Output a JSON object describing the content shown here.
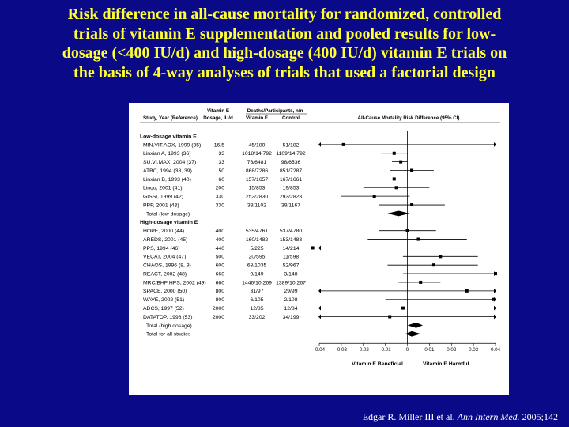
{
  "slide": {
    "title_lines": [
      "Risk difference in all-cause mortality for randomized, controlled",
      "trials of vitamin E supplementation and pooled results for low-",
      "dosage (<400 IU/d) and high-dosage (400 IU/d) vitamin E trials on",
      "the basis of 4-way analyses of trials that used a factorial design"
    ],
    "citation": {
      "authors": "Edgar R. Miller III et al.",
      "journal": "Ann Intern Med.",
      "year_vol": "2005;142"
    }
  },
  "chart_data": {
    "type": "forest",
    "title": "All-Cause Mortality Risk Difference (95% CI)",
    "headers": {
      "study": "Study, Year (Reference)",
      "dosage_line1": "Vitamin E",
      "dosage_line2": "Dosage, IU/d",
      "deaths_header": "Deaths/Participants, n/n",
      "vitamin_e": "Vitamin E",
      "control": "Control"
    },
    "xlim": [
      -0.04,
      0.04
    ],
    "xticks": [
      "-0.04",
      "-0.03",
      "-0.02",
      "-0.01",
      "0",
      "0.01",
      "0.02",
      "0.03",
      "0.04"
    ],
    "xtick_values": [
      -0.04,
      -0.03,
      -0.02,
      -0.01,
      0,
      0.01,
      0.02,
      0.03,
      0.04
    ],
    "reference_line": 0,
    "pooled_line": 0.004,
    "footer_left": "Vitamin E Beneficial",
    "footer_right": "Vitamin E Harmful",
    "groups": [
      {
        "label": "Low-dosage vitamin E",
        "studies": [
          {
            "name": "MIN.VIT.AOX, 1999 (35)",
            "dosage": "16.5",
            "vitamin_e": "45/180",
            "control": "51/182",
            "rd": -0.029,
            "lo": -0.11,
            "hi": 0.11
          },
          {
            "name": "Linxian A, 1993 (36)",
            "dosage": "33",
            "vitamin_e": "1018/14 792",
            "control": "1109/14 792",
            "rd": -0.006,
            "lo": -0.012,
            "hi": 0.0
          },
          {
            "name": "SU.VI.MAX, 2004 (37)",
            "dosage": "33",
            "vitamin_e": "76/6481",
            "control": "98/6536",
            "rd": -0.003,
            "lo": -0.007,
            "hi": 0.0
          },
          {
            "name": "ATBC, 1994 (38, 39)",
            "dosage": "50",
            "vitamin_e": "868/7286",
            "control": "851/7287",
            "rd": 0.002,
            "lo": -0.008,
            "hi": 0.012
          },
          {
            "name": "Linxian B, 1993 (40)",
            "dosage": "60",
            "vitamin_e": "157/1657",
            "control": "167/1661",
            "rd": -0.006,
            "lo": -0.026,
            "hi": 0.014
          },
          {
            "name": "Linqu, 2001 (41)",
            "dosage": "200",
            "vitamin_e": "15/853",
            "control": "19/853",
            "rd": -0.005,
            "lo": -0.02,
            "hi": 0.01
          },
          {
            "name": "GISSI, 1999 (42)",
            "dosage": "330",
            "vitamin_e": "252/2830",
            "control": "293/2828",
            "rd": -0.015,
            "lo": -0.03,
            "hi": 0.001
          },
          {
            "name": "PPP, 2001 (43)",
            "dosage": "330",
            "vitamin_e": "39/1102",
            "control": "39/1167",
            "rd": 0.002,
            "lo": -0.013,
            "hi": 0.017
          }
        ],
        "total": {
          "label": "Total (low dosage)",
          "rd": -0.004,
          "lo": -0.009,
          "hi": 0.001
        }
      },
      {
        "label": "High-dosage vitamin E",
        "studies": [
          {
            "name": "HOPE, 2000 (44)",
            "dosage": "400",
            "vitamin_e": "535/4761",
            "control": "537/4780",
            "rd": 0.0,
            "lo": -0.013,
            "hi": 0.013
          },
          {
            "name": "AREDS, 2001 (45)",
            "dosage": "400",
            "vitamin_e": "160/1482",
            "control": "153/1483",
            "rd": 0.005,
            "lo": -0.018,
            "hi": 0.027
          },
          {
            "name": "PPS, 1994 (46)",
            "dosage": "440",
            "vitamin_e": "5/225",
            "control": "14/214",
            "rd": -0.043,
            "lo": -0.076,
            "hi": -0.01
          },
          {
            "name": "VECAT, 2004 (47)",
            "dosage": "500",
            "vitamin_e": "20/595",
            "control": "11/598",
            "rd": 0.015,
            "lo": -0.002,
            "hi": 0.032
          },
          {
            "name": "CHAOS, 1996 (8, 9)",
            "dosage": "600",
            "vitamin_e": "68/1035",
            "control": "52/967",
            "rd": 0.012,
            "lo": -0.009,
            "hi": 0.032
          },
          {
            "name": "REACT, 2002 (48)",
            "dosage": "660",
            "vitamin_e": "9/149",
            "control": "3/148",
            "rd": 0.04,
            "lo": -0.002,
            "hi": 0.08
          },
          {
            "name": "MRC/BHF HPS, 2002 (49)",
            "dosage": "660",
            "vitamin_e": "1446/10 269",
            "control": "1389/10 267",
            "rd": 0.006,
            "lo": -0.004,
            "hi": 0.015
          },
          {
            "name": "SPACE, 2000 (50)",
            "dosage": "800",
            "vitamin_e": "31/97",
            "control": "29/99",
            "rd": 0.027,
            "lo": -0.1,
            "hi": 0.15
          },
          {
            "name": "WAVE, 2002 (51)",
            "dosage": "800",
            "vitamin_e": "6/105",
            "control": "2/108",
            "rd": 0.039,
            "lo": -0.01,
            "hi": 0.09
          },
          {
            "name": "ADCS, 1997 (52)",
            "dosage": "2000",
            "vitamin_e": "12/85",
            "control": "12/84",
            "rd": -0.002,
            "lo": -0.1,
            "hi": 0.1
          },
          {
            "name": "DATATOP, 1998 (53)",
            "dosage": "2000",
            "vitamin_e": "33/202",
            "control": "34/199",
            "rd": -0.008,
            "lo": -0.08,
            "hi": 0.065
          }
        ],
        "total": {
          "label": "Total (high dosage)",
          "rd": 0.004,
          "lo": 0.0,
          "hi": 0.007
        }
      }
    ],
    "overall": {
      "label": "Total for all studies",
      "rd": 0.002,
      "lo": -0.001,
      "hi": 0.006
    }
  }
}
